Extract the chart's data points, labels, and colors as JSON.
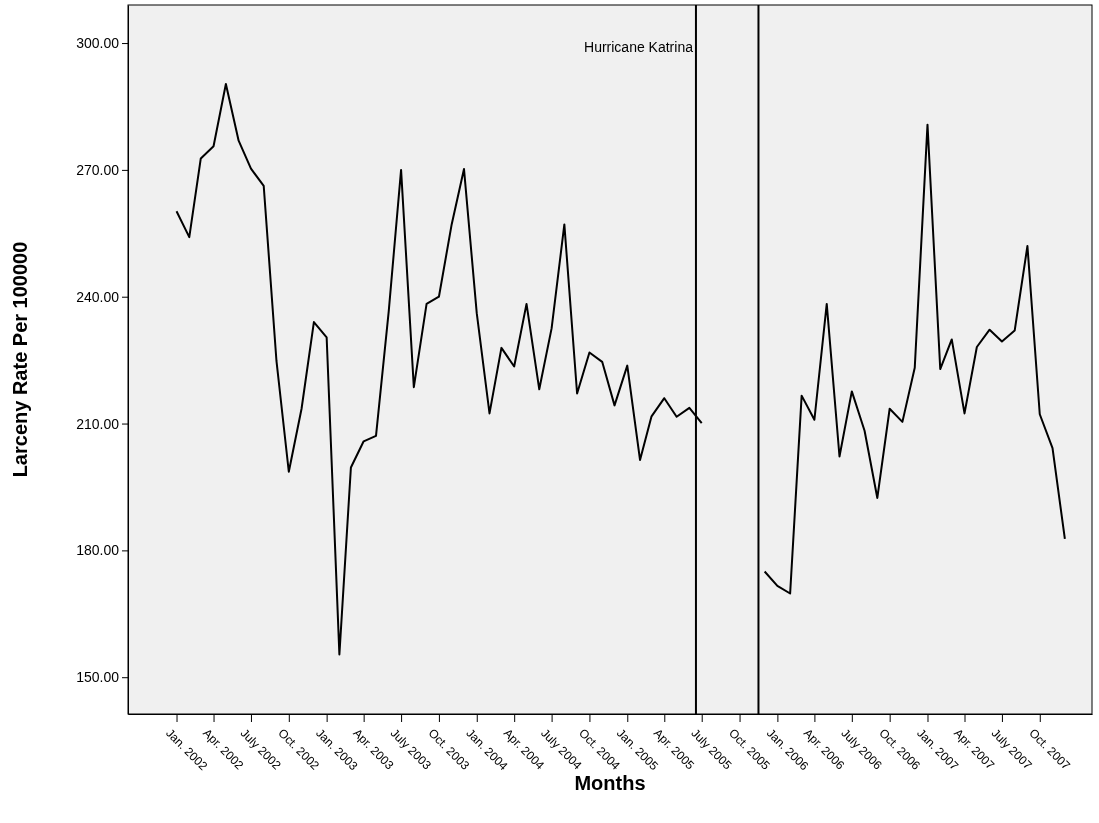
{
  "chart_data": {
    "type": "line",
    "xlabel": "Months",
    "ylabel": "Larceny Rate Per 100000",
    "x": [
      "2002-01",
      "2002-02",
      "2002-03",
      "2002-04",
      "2002-05",
      "2002-06",
      "2002-07",
      "2002-08",
      "2002-09",
      "2002-10",
      "2002-11",
      "2002-12",
      "2003-01",
      "2003-02",
      "2003-03",
      "2003-04",
      "2003-05",
      "2003-06",
      "2003-07",
      "2003-08",
      "2003-09",
      "2003-10",
      "2003-11",
      "2003-12",
      "2004-01",
      "2004-02",
      "2004-03",
      "2004-04",
      "2004-05",
      "2004-06",
      "2004-07",
      "2004-08",
      "2004-09",
      "2004-10",
      "2004-11",
      "2004-12",
      "2005-01",
      "2005-02",
      "2005-03",
      "2005-04",
      "2005-05",
      "2005-06",
      "2005-07",
      "2005-08",
      "2005-09",
      "2005-10",
      "2005-11",
      "2005-12",
      "2006-01",
      "2006-02",
      "2006-03",
      "2006-04",
      "2006-05",
      "2006-06",
      "2006-07",
      "2006-08",
      "2006-09",
      "2006-10",
      "2006-11",
      "2006-12",
      "2007-01",
      "2007-02",
      "2007-03",
      "2007-04",
      "2007-05",
      "2007-06",
      "2007-07",
      "2007-08",
      "2007-09",
      "2007-10",
      "2007-11",
      "2007-12"
    ],
    "series": [
      {
        "color": "#000000",
        "values": [
          260.2,
          254.1,
          272.7,
          275.6,
          290.3,
          276.9,
          270.3,
          266.2,
          224.8,
          198.6,
          213.5,
          234.0,
          230.4,
          155.4,
          199.6,
          205.8,
          207.1,
          236.6,
          270.0,
          218.6,
          238.3,
          240.0,
          257.1,
          270.2,
          236.1,
          212.4,
          227.9,
          223.5,
          238.3,
          218.1,
          232.5,
          257.1,
          217.1,
          226.8,
          224.6,
          214.3,
          223.7,
          201.4,
          211.7,
          216.0,
          211.6,
          213.7,
          210.1,
          null,
          null,
          null,
          null,
          175.0,
          171.6,
          169.8,
          216.6,
          210.9,
          238.3,
          202.2,
          217.6,
          208.3,
          192.4,
          213.5,
          210.4,
          223.2,
          280.7,
          222.9,
          229.9,
          212.4,
          228.1,
          232.2,
          229.4,
          232.0,
          252.0,
          212.2,
          204.2,
          182.7
        ]
      }
    ],
    "xlim": [
      "2001-09-05",
      "2008-02-05"
    ],
    "xticks": [
      {
        "value": "2002-01",
        "label": "Jan. 2002"
      },
      {
        "value": "2002-04",
        "label": "Apr. 2002"
      },
      {
        "value": "2002-07",
        "label": "July 2002"
      },
      {
        "value": "2002-10",
        "label": "Oct. 2002"
      },
      {
        "value": "2003-01",
        "label": "Jan. 2003"
      },
      {
        "value": "2003-04",
        "label": "Apr. 2003"
      },
      {
        "value": "2003-07",
        "label": "July 2003"
      },
      {
        "value": "2003-10",
        "label": "Oct. 2003"
      },
      {
        "value": "2004-01",
        "label": "Jan. 2004"
      },
      {
        "value": "2004-04",
        "label": "Apr. 2004"
      },
      {
        "value": "2004-07",
        "label": "July 2004"
      },
      {
        "value": "2004-10",
        "label": "Oct. 2004"
      },
      {
        "value": "2005-01",
        "label": "Jan. 2005"
      },
      {
        "value": "2005-04",
        "label": "Apr. 2005"
      },
      {
        "value": "2005-07",
        "label": "July 2005"
      },
      {
        "value": "2005-10",
        "label": "Oct. 2005"
      },
      {
        "value": "2006-01",
        "label": "Jan. 2006"
      },
      {
        "value": "2006-04",
        "label": "Apr. 2006"
      },
      {
        "value": "2006-07",
        "label": "July 2006"
      },
      {
        "value": "2006-10",
        "label": "Oct. 2006"
      },
      {
        "value": "2007-01",
        "label": "Jan. 2007"
      },
      {
        "value": "2007-04",
        "label": "Apr. 2007"
      },
      {
        "value": "2007-07",
        "label": "July 2007"
      },
      {
        "value": "2007-10",
        "label": "Oct. 2007"
      }
    ],
    "ylim": [
      141.3,
      309
    ],
    "yticks": [
      {
        "value": 150,
        "label": "150.00"
      },
      {
        "value": 180,
        "label": "180.00"
      },
      {
        "value": 210,
        "label": "210.00"
      },
      {
        "value": 240,
        "label": "240.00"
      },
      {
        "value": 270,
        "label": "270.00"
      },
      {
        "value": 300,
        "label": "300.00"
      }
    ],
    "ref_lines": [
      {
        "axis": "x",
        "value": "2005-06-17",
        "label": "Hurricane Katrina",
        "color": "#000000"
      },
      {
        "axis": "x",
        "value": "2005-11-16",
        "color": "#000000"
      }
    ],
    "grid": false,
    "marker": "none",
    "line_style": "solid"
  }
}
